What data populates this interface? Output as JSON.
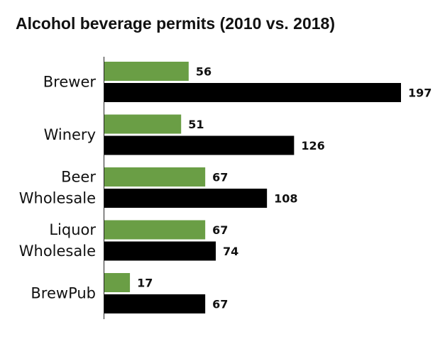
{
  "chart_data": {
    "type": "bar",
    "orientation": "horizontal",
    "title": "Alcohol beverage permits (2010 vs. 2018)",
    "categories": [
      [
        "Brewer"
      ],
      [
        "Winery"
      ],
      [
        "Beer",
        "Wholesale"
      ],
      [
        "Liquor",
        "Wholesale"
      ],
      [
        "BrewPub"
      ]
    ],
    "series": [
      {
        "values": [
          56,
          51,
          67,
          67,
          17
        ],
        "color": "#6a9e45"
      },
      {
        "values": [
          197,
          126,
          108,
          74,
          67
        ],
        "color": "#000000"
      }
    ],
    "xlim": [
      0,
      197
    ],
    "grid": false,
    "legend": "none"
  }
}
